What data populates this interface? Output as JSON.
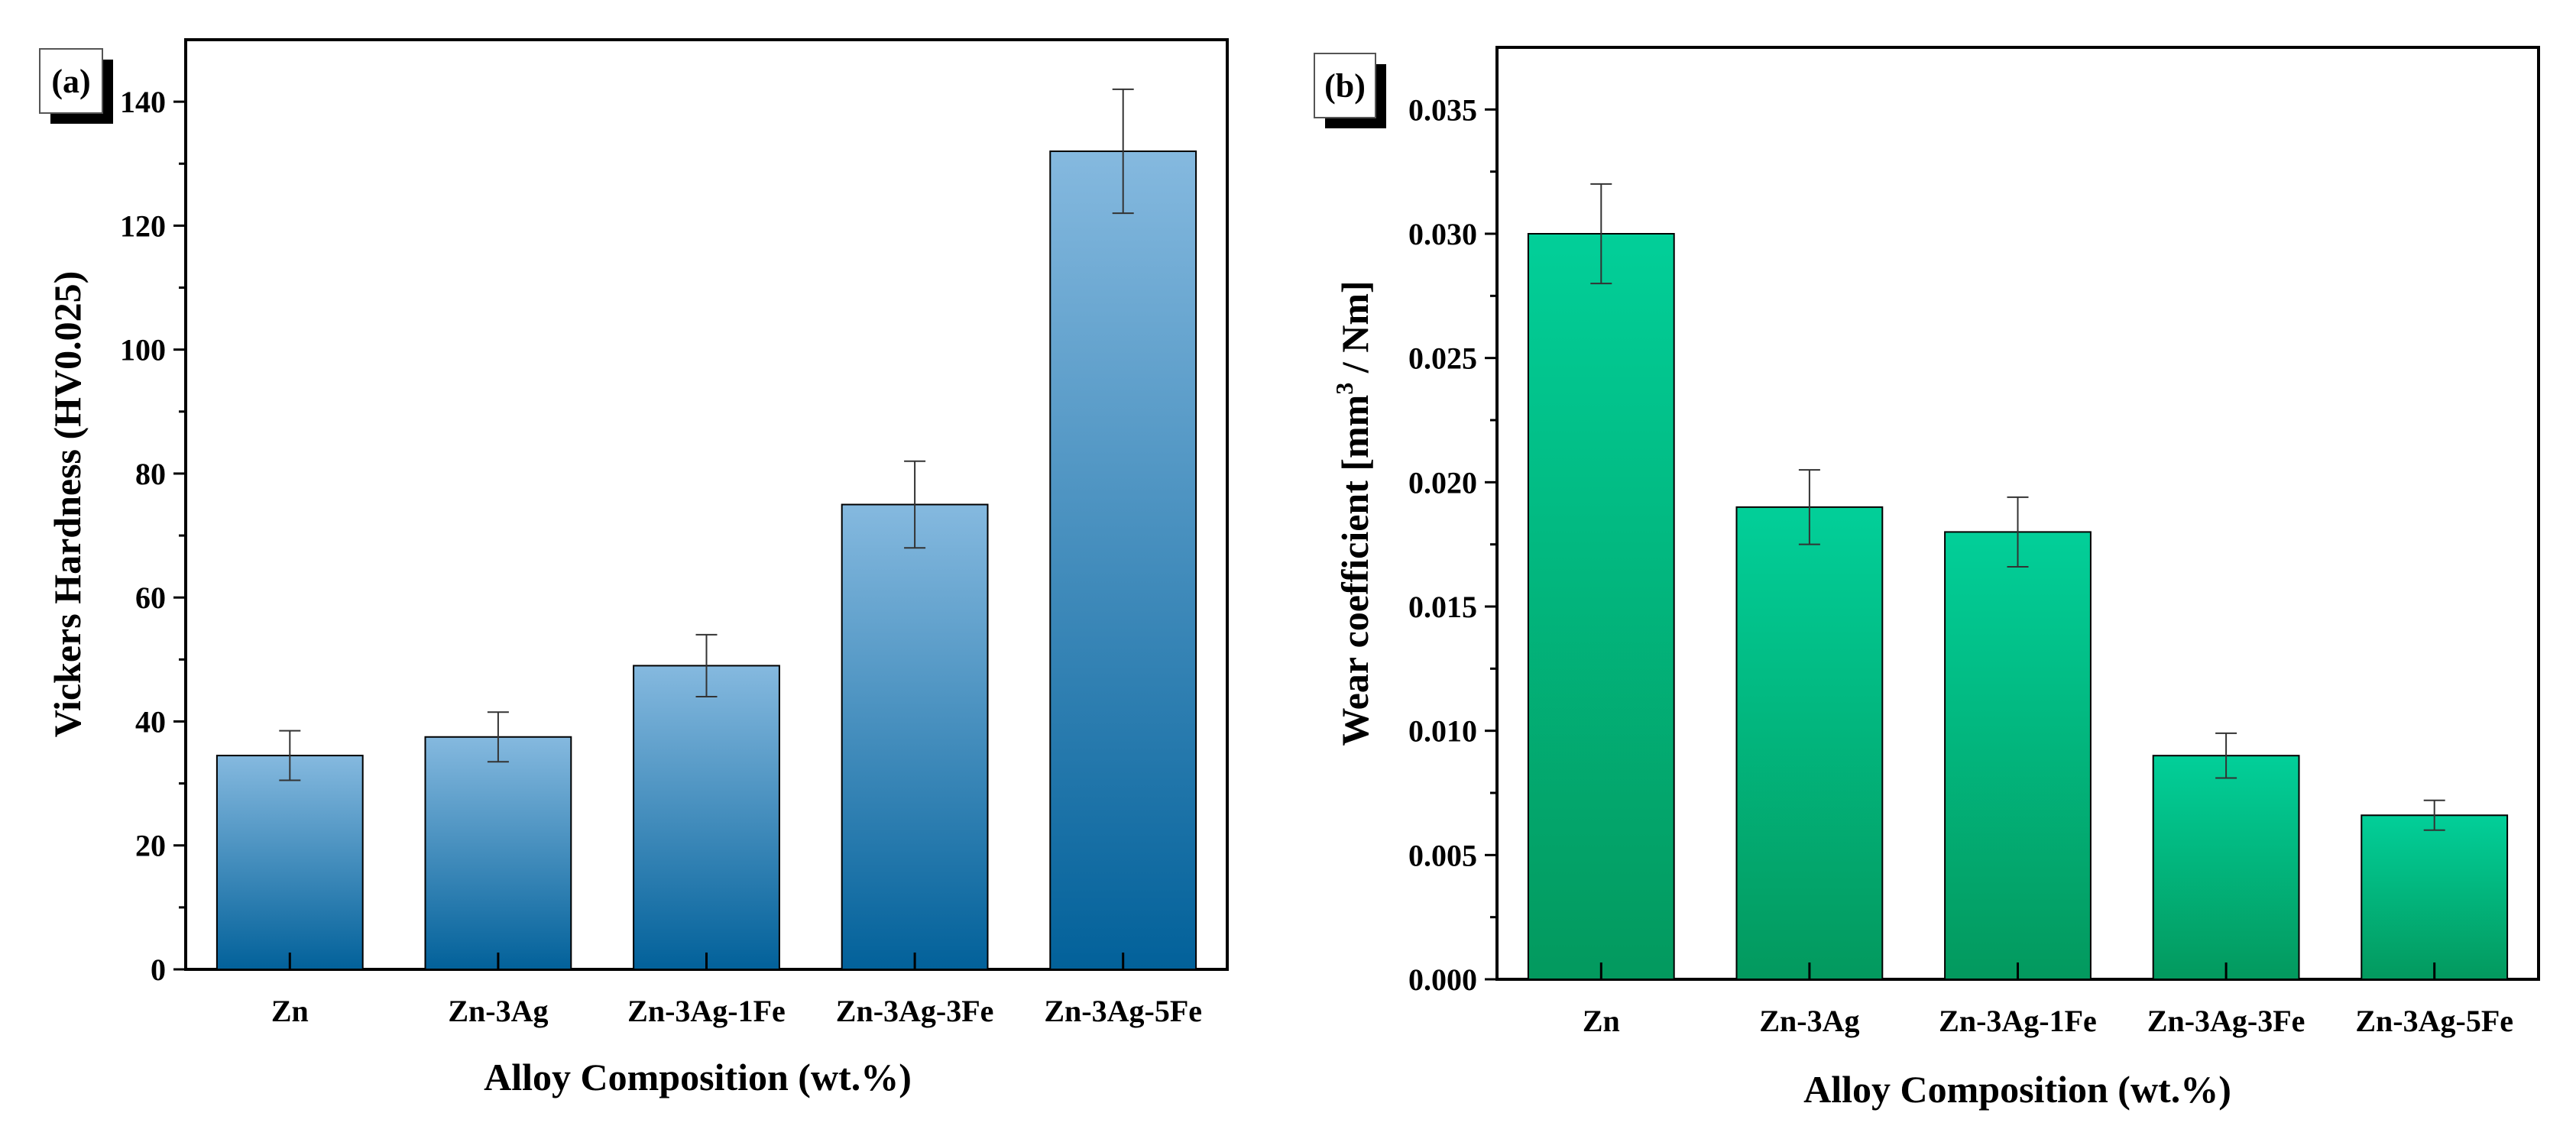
{
  "chart_data": [
    {
      "type": "bar",
      "panel_label": "(a)",
      "categories": [
        "Zn",
        "Zn-3Ag",
        "Zn-3Ag-1Fe",
        "Zn-3Ag-3Fe",
        "Zn-3Ag-5Fe"
      ],
      "values": [
        34.5,
        37.5,
        49,
        75,
        132
      ],
      "errors": [
        4,
        4,
        5,
        7,
        10
      ],
      "xlabel": "Alloy Composition (wt.%)",
      "ylabel": "Vickers Hardness (HV0.025)",
      "ylim": [
        0,
        150
      ],
      "yticks": [
        0,
        20,
        40,
        60,
        80,
        100,
        120,
        140
      ],
      "ytick_labels": [
        "0",
        "20",
        "40",
        "60",
        "80",
        "100",
        "120",
        "140"
      ],
      "bar_color_top": "#85b9df",
      "bar_color_bottom": "#02619a"
    },
    {
      "type": "bar",
      "panel_label": "(b)",
      "categories": [
        "Zn",
        "Zn-3Ag",
        "Zn-3Ag-1Fe",
        "Zn-3Ag-3Fe",
        "Zn-3Ag-5Fe"
      ],
      "values": [
        0.03,
        0.019,
        0.018,
        0.009,
        0.0066
      ],
      "errors": [
        0.002,
        0.0015,
        0.0014,
        0.0009,
        0.0006
      ],
      "xlabel": "Alloy Composition (wt.%)",
      "ylabel": "Wear coefficient [mm",
      "ylabel_superscript": "3",
      "ylabel_suffix": " / Nm]",
      "ylim": [
        0,
        0.0375
      ],
      "yticks": [
        0,
        0.005,
        0.01,
        0.015,
        0.02,
        0.025,
        0.03,
        0.035
      ],
      "ytick_labels": [
        "0.000",
        "0.005",
        "0.010",
        "0.015",
        "0.020",
        "0.025",
        "0.030",
        "0.035"
      ],
      "bar_color_top": "#02cf99",
      "bar_color_bottom": "#03995e"
    }
  ]
}
